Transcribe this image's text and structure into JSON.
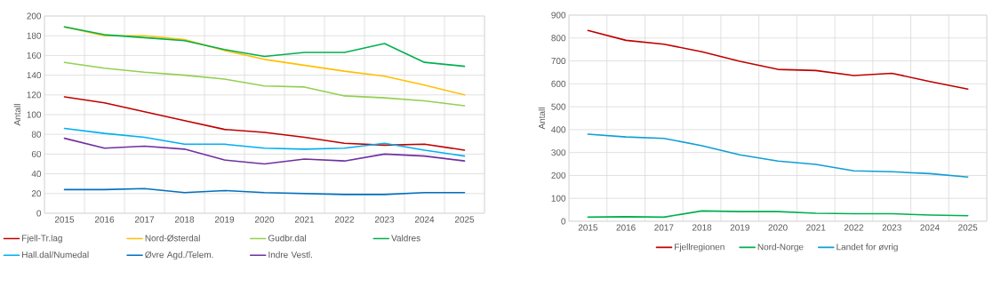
{
  "chart_data": [
    {
      "type": "line",
      "ylabel": "Antall",
      "categories": [
        "2015",
        "2016",
        "2017",
        "2018",
        "2019",
        "2020",
        "2021",
        "2022",
        "2023",
        "2024",
        "2025"
      ],
      "ylim": [
        0,
        200
      ],
      "yticks": [
        0,
        20,
        40,
        60,
        80,
        100,
        120,
        140,
        160,
        180,
        200
      ],
      "grid": true,
      "legend": "bottom",
      "marker": "none",
      "line_style": "solid",
      "series": [
        {
          "name": "Fjell-Tr.lag",
          "color": "#c00000",
          "values": [
            118,
            112,
            103,
            94,
            85,
            82,
            77,
            71,
            69,
            70,
            64
          ]
        },
        {
          "name": "Nord-Østerdal",
          "color": "#ffc000",
          "values": [
            189,
            180,
            180,
            176,
            165,
            156,
            150,
            144,
            139,
            130,
            120
          ]
        },
        {
          "name": "Gudbr.dal",
          "color": "#92d050",
          "values": [
            153,
            147,
            143,
            140,
            136,
            129,
            128,
            119,
            117,
            114,
            109
          ]
        },
        {
          "name": "Valdres",
          "color": "#00b050",
          "values": [
            189,
            181,
            178,
            175,
            166,
            159,
            163,
            163,
            172,
            153,
            149
          ]
        },
        {
          "name": "Hall.dal/Numedal",
          "color": "#00b0f0",
          "values": [
            86,
            81,
            77,
            70,
            70,
            66,
            65,
            66,
            71,
            64,
            58
          ]
        },
        {
          "name": "Øvre Agd./Telem.",
          "color": "#0070c0",
          "values": [
            24,
            24,
            25,
            21,
            23,
            21,
            20,
            19,
            19,
            21,
            21
          ]
        },
        {
          "name": "Indre Vestl.",
          "color": "#7030a0",
          "values": [
            76,
            66,
            68,
            65,
            54,
            50,
            55,
            53,
            60,
            58,
            53
          ]
        }
      ]
    },
    {
      "type": "line",
      "ylabel": "Antall",
      "categories": [
        "2015",
        "2016",
        "2017",
        "2018",
        "2019",
        "2020",
        "2021",
        "2022",
        "2023",
        "2024",
        "2025"
      ],
      "ylim": [
        0,
        900
      ],
      "yticks": [
        0,
        100,
        200,
        300,
        400,
        500,
        600,
        700,
        800,
        900
      ],
      "grid": true,
      "legend": "bottom",
      "marker": "none",
      "line_style": "solid",
      "series": [
        {
          "name": "Fjellregionen",
          "color": "#c00000",
          "values": [
            833,
            790,
            773,
            740,
            698,
            663,
            658,
            636,
            646,
            610,
            577
          ]
        },
        {
          "name": "Nord-Norge",
          "color": "#00b050",
          "values": [
            18,
            20,
            18,
            45,
            42,
            42,
            35,
            33,
            33,
            27,
            24
          ]
        },
        {
          "name": "Landet for øvrig",
          "color": "#0f9ed5",
          "values": [
            380,
            368,
            362,
            330,
            290,
            263,
            248,
            220,
            216,
            208,
            193
          ]
        }
      ]
    }
  ]
}
